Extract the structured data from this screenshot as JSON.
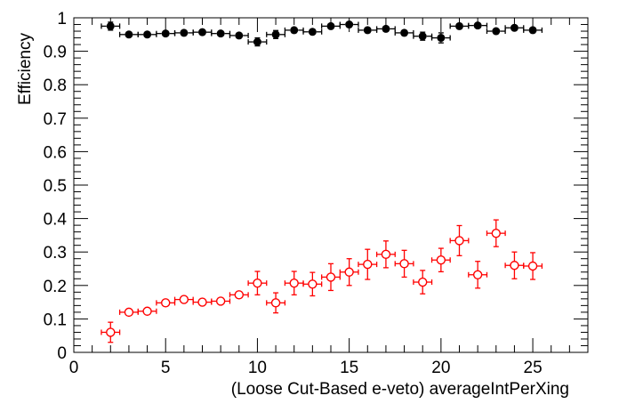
{
  "chart_data": {
    "type": "scatter",
    "title": "",
    "xlabel": "(Loose Cut-Based e-veto) averageIntPerXing",
    "ylabel": "Efficiency",
    "xlim": [
      0,
      28
    ],
    "ylim": [
      0,
      1
    ],
    "xticks": [
      "0",
      "5",
      "10",
      "15",
      "20",
      "25"
    ],
    "yticks": [
      "0",
      "0.1",
      "0.2",
      "0.3",
      "0.4",
      "0.5",
      "0.6",
      "0.7",
      "0.8",
      "0.9",
      "1"
    ],
    "series": [
      {
        "name": "black",
        "color": "#000000",
        "marker": "filled-circle",
        "x": [
          2,
          3,
          4,
          5,
          6,
          7,
          8,
          9,
          10,
          11,
          12,
          13,
          14,
          15,
          16,
          17,
          18,
          19,
          20,
          21,
          22,
          23,
          24,
          25
        ],
        "y": [
          0.975,
          0.95,
          0.95,
          0.953,
          0.955,
          0.957,
          0.953,
          0.947,
          0.928,
          0.95,
          0.963,
          0.958,
          0.975,
          0.98,
          0.963,
          0.967,
          0.955,
          0.945,
          0.94,
          0.975,
          0.977,
          0.96,
          0.97,
          0.963
        ],
        "yerr": [
          0.012,
          0.005,
          0.005,
          0.005,
          0.004,
          0.004,
          0.004,
          0.006,
          0.012,
          0.012,
          0.01,
          0.01,
          0.01,
          0.008,
          0.008,
          0.008,
          0.01,
          0.012,
          0.015,
          0.008,
          0.008,
          0.01,
          0.008,
          0.01
        ]
      },
      {
        "name": "red",
        "color": "#ff0000",
        "marker": "open-circle",
        "x": [
          2,
          3,
          4,
          5,
          6,
          7,
          8,
          9,
          10,
          11,
          12,
          13,
          14,
          15,
          16,
          17,
          18,
          19,
          20,
          21,
          22,
          23,
          24,
          25
        ],
        "y": [
          0.06,
          0.12,
          0.123,
          0.148,
          0.158,
          0.15,
          0.153,
          0.172,
          0.207,
          0.148,
          0.207,
          0.204,
          0.225,
          0.24,
          0.263,
          0.293,
          0.265,
          0.21,
          0.276,
          0.334,
          0.232,
          0.356,
          0.26,
          0.258
        ],
        "yerr": [
          0.03,
          0.008,
          0.008,
          0.008,
          0.008,
          0.008,
          0.008,
          0.01,
          0.035,
          0.03,
          0.035,
          0.035,
          0.04,
          0.04,
          0.045,
          0.04,
          0.04,
          0.035,
          0.035,
          0.045,
          0.04,
          0.04,
          0.04,
          0.04
        ]
      }
    ]
  }
}
